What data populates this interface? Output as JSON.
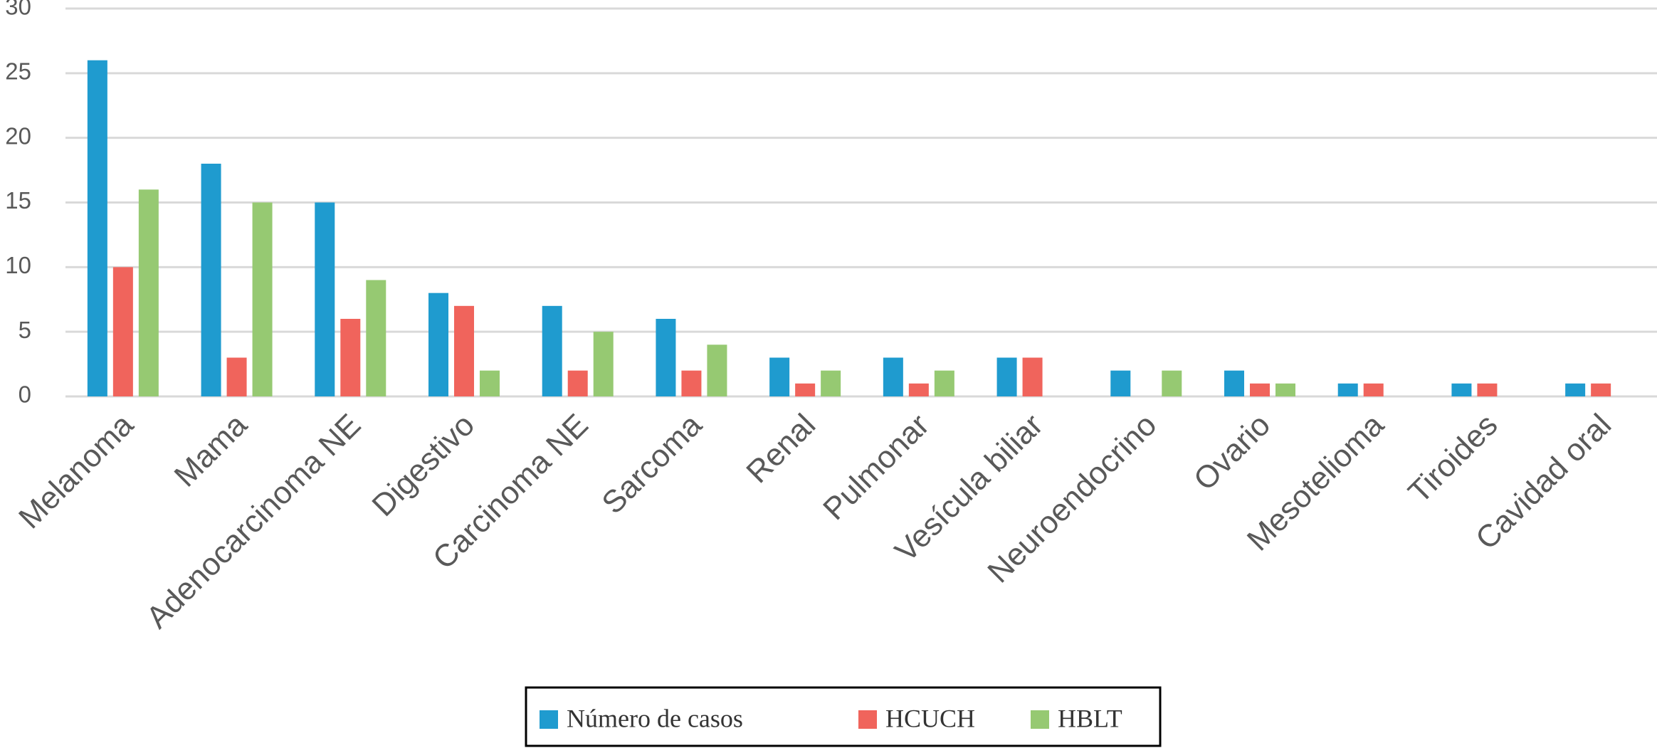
{
  "chart_data": {
    "type": "bar",
    "categories": [
      "Melanoma",
      "Mama",
      "Adenocarcinoma NE",
      "Digestivo",
      "Carcinoma NE",
      "Sarcoma",
      "Renal",
      "Pulmonar",
      "Vesícula biliar",
      "Neuroendocrino",
      "Ovario",
      "Mesotelioma",
      "Tiroides",
      "Cavidad oral"
    ],
    "series": [
      {
        "name": "Número de casos",
        "color": "#1f9bcf",
        "values": [
          26,
          18,
          15,
          8,
          7,
          6,
          3,
          3,
          3,
          2,
          2,
          1,
          1,
          1
        ]
      },
      {
        "name": "HCUCH",
        "color": "#f0645c",
        "values": [
          10,
          3,
          6,
          7,
          2,
          2,
          1,
          1,
          3,
          0,
          1,
          1,
          1,
          1
        ]
      },
      {
        "name": "HBLT",
        "color": "#96c972",
        "values": [
          16,
          15,
          9,
          2,
          5,
          4,
          2,
          2,
          0,
          2,
          1,
          0,
          0,
          0
        ]
      }
    ],
    "ylim": [
      0,
      30
    ],
    "yticks": [
      0,
      5,
      10,
      15,
      20,
      25,
      30
    ],
    "grid": true,
    "legend": "bottom"
  }
}
